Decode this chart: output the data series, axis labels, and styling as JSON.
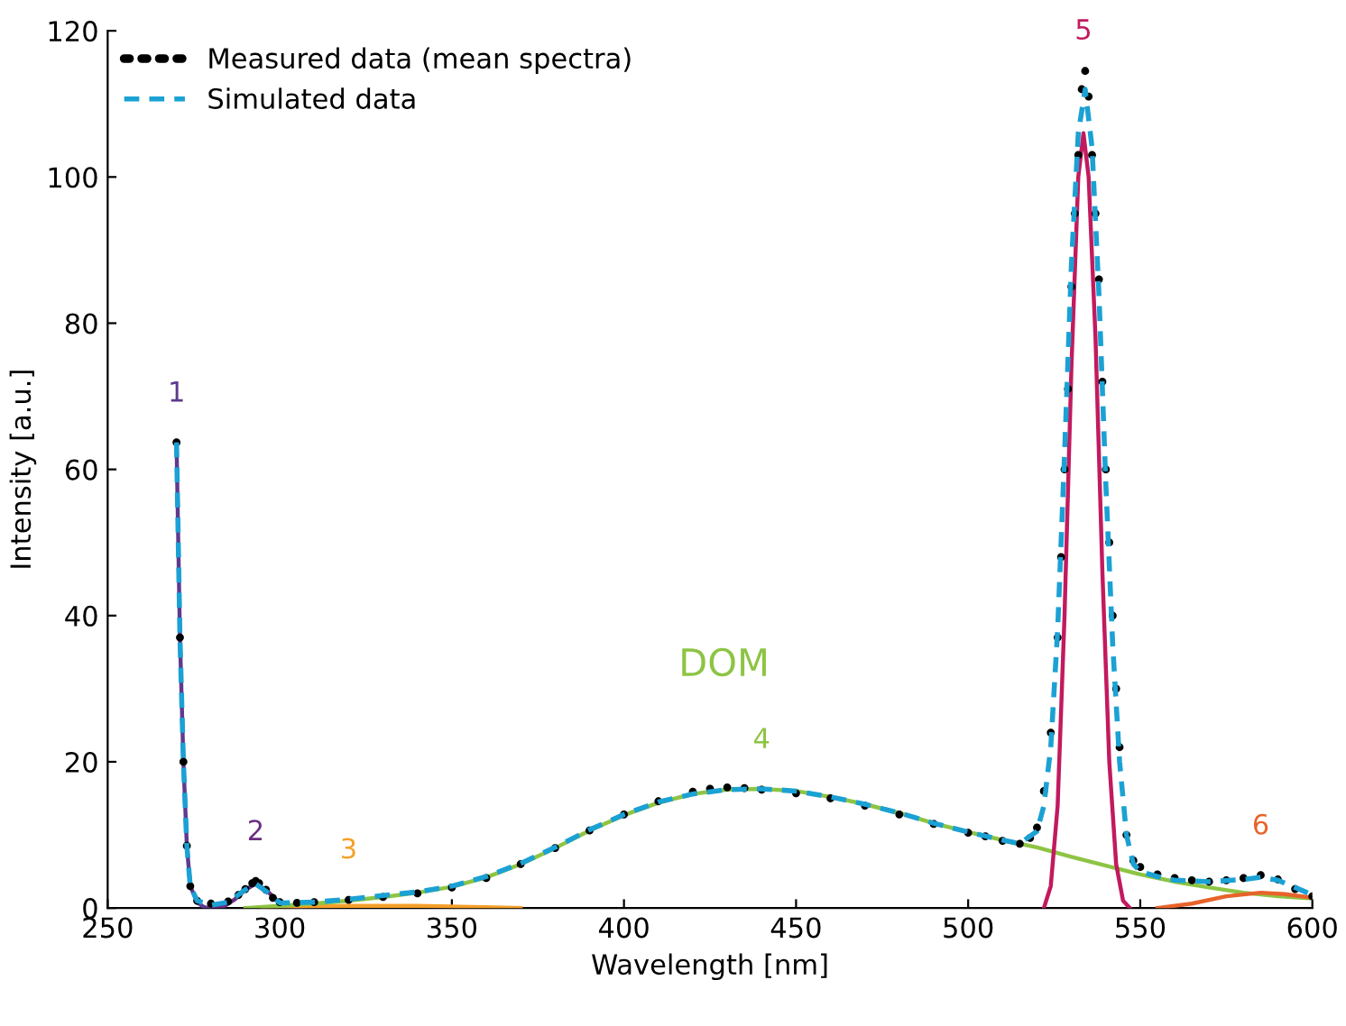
{
  "chart_data": {
    "type": "line",
    "xlabel": "Wavelength [nm]",
    "ylabel": "Intensity [a.u.]",
    "xlim": [
      250,
      600
    ],
    "ylim": [
      0,
      120
    ],
    "xticks": [
      250,
      300,
      350,
      400,
      450,
      500,
      550,
      600
    ],
    "yticks": [
      0,
      20,
      40,
      60,
      80,
      100,
      120
    ],
    "grid": false,
    "legend": "top left",
    "series": [
      {
        "name": "Measured data (mean spectra)",
        "type": "scatter",
        "marker": "circle",
        "color": "#000000",
        "x": [
          270,
          271,
          272,
          273,
          274,
          276,
          280,
          285,
          288,
          290,
          292,
          293,
          294,
          296,
          298,
          300,
          305,
          310,
          320,
          330,
          340,
          350,
          360,
          370,
          380,
          390,
          400,
          410,
          420,
          425,
          430,
          435,
          440,
          450,
          460,
          470,
          480,
          490,
          500,
          505,
          510,
          515,
          518,
          520,
          522,
          524,
          526,
          527,
          528,
          529,
          530,
          531,
          532,
          533,
          534,
          535,
          536,
          537,
          538,
          539,
          540,
          541,
          542,
          543,
          544,
          546,
          548,
          550,
          555,
          560,
          565,
          570,
          575,
          580,
          585,
          590,
          595,
          600
        ],
        "values": [
          63.7,
          37,
          20,
          8.5,
          3,
          1,
          0.6,
          0.9,
          1.8,
          2.6,
          3.4,
          3.7,
          3.4,
          2.5,
          1.4,
          0.8,
          0.7,
          0.8,
          1.1,
          1.5,
          2.0,
          2.8,
          4.1,
          6.0,
          8.2,
          10.6,
          12.8,
          14.6,
          15.9,
          16.3,
          16.5,
          16.4,
          16.2,
          15.7,
          15.0,
          14.0,
          12.8,
          11.5,
          10.3,
          9.8,
          9.2,
          8.8,
          9.6,
          11,
          16,
          24,
          37,
          48,
          60,
          71,
          85,
          95,
          103,
          112,
          114.5,
          111,
          103,
          95,
          86,
          72,
          60,
          50,
          40,
          30,
          22,
          10,
          6.5,
          5.6,
          4.6,
          4.1,
          3.8,
          3.6,
          3.8,
          4.1,
          4.5,
          3.9,
          2.6,
          1.6
        ]
      },
      {
        "name": "Simulated data",
        "type": "line",
        "line_style": "dashed",
        "color": "#1ba1d4",
        "x": [
          270,
          271,
          272,
          273,
          274,
          276,
          280,
          285,
          290,
          293,
          296,
          300,
          310,
          320,
          330,
          340,
          350,
          360,
          370,
          380,
          390,
          400,
          410,
          420,
          430,
          440,
          450,
          460,
          470,
          480,
          490,
          500,
          510,
          515,
          520,
          522,
          524,
          526,
          528,
          530,
          532,
          534,
          536,
          538,
          540,
          542,
          544,
          546,
          548,
          550,
          555,
          560,
          570,
          580,
          585,
          590,
          595,
          600
        ],
        "values": [
          63.7,
          37,
          20,
          8.5,
          3,
          1,
          0.4,
          0.8,
          2.5,
          3.3,
          2.3,
          0.7,
          0.8,
          1.2,
          1.7,
          2.2,
          3.0,
          4.3,
          6.1,
          8.3,
          10.7,
          12.8,
          14.5,
          15.6,
          16.2,
          16.3,
          16.0,
          15.2,
          14.2,
          13.0,
          11.6,
          10.4,
          9.3,
          8.8,
          10.5,
          14,
          22,
          38,
          62,
          88,
          106,
          112,
          104,
          84,
          58,
          36,
          20,
          10,
          6,
          5,
          4.3,
          3.8,
          3.6,
          3.9,
          4.2,
          3.8,
          2.8,
          1.8
        ]
      },
      {
        "name": "1",
        "color": "#5e3a8f",
        "x": [
          270,
          271,
          272,
          273,
          274,
          276,
          278,
          280
        ],
        "values": [
          63.7,
          37,
          20,
          8.5,
          3,
          0.8,
          0.1,
          0
        ]
      },
      {
        "name": "2",
        "color": "#6b2d82",
        "x": [
          280,
          284,
          287,
          290,
          293,
          296,
          299,
          302,
          306
        ],
        "values": [
          0,
          0.3,
          1.2,
          2.5,
          3.3,
          2.5,
          1.1,
          0.3,
          0
        ]
      },
      {
        "name": "3",
        "color": "#f5a02a",
        "x": [
          295,
          310,
          320,
          330,
          340,
          350,
          360,
          370
        ],
        "values": [
          0,
          0.2,
          0.3,
          0.3,
          0.3,
          0.2,
          0.1,
          0
        ]
      },
      {
        "name": "4",
        "color": "#8dc444",
        "x": [
          290,
          300,
          310,
          320,
          330,
          340,
          350,
          360,
          370,
          380,
          390,
          400,
          410,
          420,
          430,
          440,
          450,
          460,
          470,
          480,
          490,
          500,
          510,
          520,
          530,
          540,
          550,
          560,
          570,
          580,
          590,
          600
        ],
        "values": [
          0,
          0.3,
          0.6,
          1.0,
          1.5,
          2.1,
          2.9,
          4.2,
          6.0,
          8.2,
          10.6,
          12.7,
          14.4,
          15.6,
          16.2,
          16.3,
          16.0,
          15.2,
          14.2,
          13.0,
          11.6,
          10.4,
          9.3,
          8.3,
          7.0,
          5.8,
          4.6,
          3.6,
          2.8,
          2.1,
          1.6,
          1.3
        ]
      },
      {
        "name": "5",
        "color": "#c21a5e",
        "x": [
          522,
          524,
          526,
          528,
          530,
          532,
          533.5,
          535,
          537,
          539,
          541,
          543,
          545,
          547
        ],
        "values": [
          0,
          3,
          14,
          40,
          74,
          100,
          106,
          100,
          78,
          46,
          20,
          6,
          1,
          0
        ]
      },
      {
        "name": "6",
        "color": "#e8632a",
        "x": [
          555,
          565,
          575,
          585,
          592,
          600
        ],
        "values": [
          0,
          0.6,
          1.6,
          2.1,
          1.9,
          1.4
        ]
      }
    ],
    "annotations": [
      "DOM"
    ]
  }
}
